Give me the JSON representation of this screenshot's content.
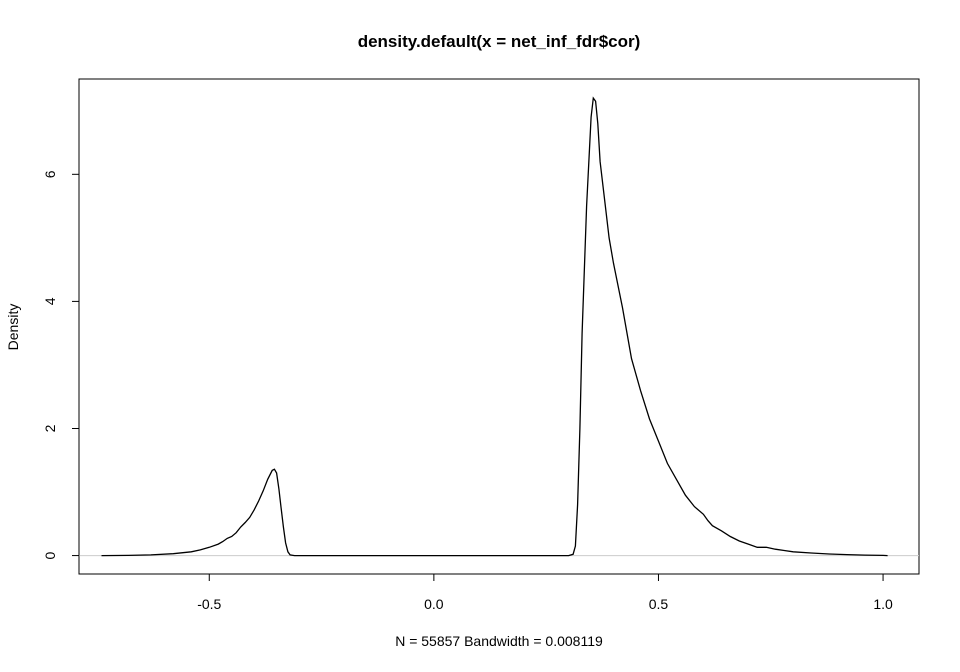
{
  "chart_data": {
    "type": "line",
    "title": "density.default(x = net_inf_fdr$cor)",
    "xlabel": "N = 55857   Bandwidth = 0.008119",
    "ylabel": "Density",
    "xlim": [
      -0.79,
      1.08
    ],
    "ylim": [
      -0.29,
      7.5
    ],
    "x_ticks": [
      -0.5,
      0.0,
      0.5,
      1.0
    ],
    "x_tick_labels": [
      "-0.5",
      "0.0",
      "0.5",
      "1.0"
    ],
    "y_ticks": [
      0,
      2,
      4,
      6
    ],
    "y_tick_labels": [
      "0",
      "2",
      "4",
      "6"
    ],
    "baseline": 0,
    "grid": false,
    "series": [
      {
        "points": [
          [
            -0.74,
            0.0
          ],
          [
            -0.68,
            0.003
          ],
          [
            -0.63,
            0.01
          ],
          [
            -0.58,
            0.03
          ],
          [
            -0.54,
            0.06
          ],
          [
            -0.52,
            0.09
          ],
          [
            -0.5,
            0.13
          ],
          [
            -0.48,
            0.18
          ],
          [
            -0.47,
            0.22
          ],
          [
            -0.46,
            0.27
          ],
          [
            -0.45,
            0.3
          ],
          [
            -0.44,
            0.36
          ],
          [
            -0.43,
            0.45
          ],
          [
            -0.42,
            0.52
          ],
          [
            -0.41,
            0.6
          ],
          [
            -0.4,
            0.72
          ],
          [
            -0.39,
            0.86
          ],
          [
            -0.38,
            1.02
          ],
          [
            -0.37,
            1.2
          ],
          [
            -0.36,
            1.34
          ],
          [
            -0.355,
            1.36
          ],
          [
            -0.35,
            1.3
          ],
          [
            -0.345,
            1.05
          ],
          [
            -0.34,
            0.75
          ],
          [
            -0.335,
            0.45
          ],
          [
            -0.33,
            0.2
          ],
          [
            -0.325,
            0.06
          ],
          [
            -0.32,
            0.01
          ],
          [
            -0.31,
            0.0
          ],
          [
            0.0,
            0.0
          ],
          [
            0.3,
            0.0
          ],
          [
            0.31,
            0.02
          ],
          [
            0.315,
            0.15
          ],
          [
            0.32,
            0.8
          ],
          [
            0.325,
            2.0
          ],
          [
            0.33,
            3.5
          ],
          [
            0.34,
            5.5
          ],
          [
            0.35,
            6.9
          ],
          [
            0.355,
            7.2
          ],
          [
            0.36,
            7.15
          ],
          [
            0.365,
            6.8
          ],
          [
            0.37,
            6.2
          ],
          [
            0.38,
            5.6
          ],
          [
            0.39,
            5.0
          ],
          [
            0.4,
            4.6
          ],
          [
            0.42,
            3.9
          ],
          [
            0.44,
            3.1
          ],
          [
            0.46,
            2.6
          ],
          [
            0.48,
            2.15
          ],
          [
            0.5,
            1.8
          ],
          [
            0.52,
            1.45
          ],
          [
            0.54,
            1.2
          ],
          [
            0.56,
            0.95
          ],
          [
            0.58,
            0.77
          ],
          [
            0.6,
            0.65
          ],
          [
            0.61,
            0.55
          ],
          [
            0.62,
            0.47
          ],
          [
            0.64,
            0.39
          ],
          [
            0.66,
            0.3
          ],
          [
            0.68,
            0.23
          ],
          [
            0.7,
            0.18
          ],
          [
            0.72,
            0.13
          ],
          [
            0.74,
            0.13
          ],
          [
            0.76,
            0.1
          ],
          [
            0.78,
            0.08
          ],
          [
            0.8,
            0.06
          ],
          [
            0.84,
            0.04
          ],
          [
            0.88,
            0.025
          ],
          [
            0.92,
            0.015
          ],
          [
            0.96,
            0.008
          ],
          [
            1.0,
            0.003
          ],
          [
            1.01,
            0.0
          ]
        ]
      }
    ]
  }
}
